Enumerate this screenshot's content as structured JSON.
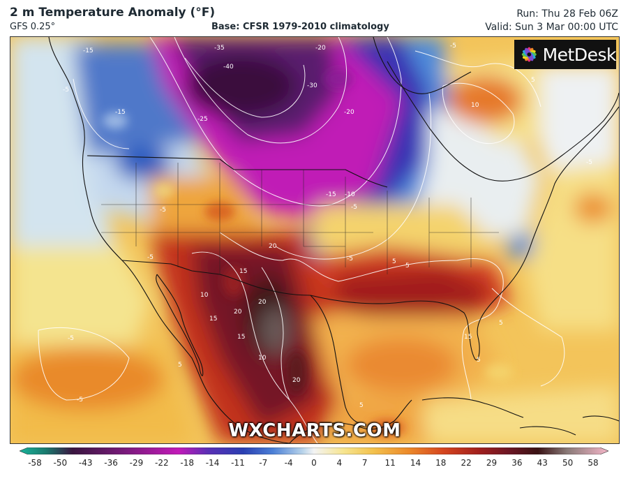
{
  "header": {
    "title": "2 m Temperature Anomaly (°F)",
    "model": "GFS 0.25°",
    "base": "Base: CFSR 1979-2010 climatology",
    "run": "Run: Thu 28 Feb 06Z",
    "valid": "Valid: Sun 3 Mar 00:00 UTC"
  },
  "logo": {
    "text": "MetDesk"
  },
  "watermark": "WXCHARTS.COM",
  "colorbar": {
    "ticks": [
      "-58",
      "-50",
      "-43",
      "-36",
      "-29",
      "-22",
      "-18",
      "-14",
      "-11",
      "-7",
      "-4",
      "0",
      "4",
      "7",
      "11",
      "14",
      "18",
      "22",
      "29",
      "36",
      "43",
      "50",
      "58"
    ]
  },
  "contour_labels": [
    "-15",
    "-40",
    "-35",
    "-20",
    "-5",
    "-15",
    "-25",
    "-30",
    "-20",
    "-15",
    "-10",
    "-5",
    "-5",
    "10",
    "5",
    "-5",
    "-5",
    "-5",
    "20",
    "15",
    "20",
    "10",
    "20",
    "15",
    "15",
    "20",
    "10",
    "5",
    "15",
    "5",
    "5",
    "5",
    "-5",
    "-5",
    "5",
    "-5",
    "5"
  ]
}
